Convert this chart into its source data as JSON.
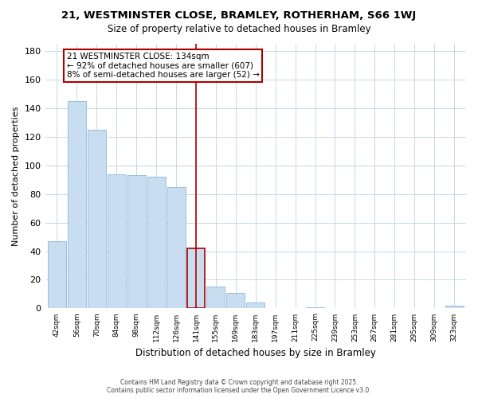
{
  "title": "21, WESTMINSTER CLOSE, BRAMLEY, ROTHERHAM, S66 1WJ",
  "subtitle": "Size of property relative to detached houses in Bramley",
  "xlabel": "Distribution of detached houses by size in Bramley",
  "ylabel": "Number of detached properties",
  "bar_labels": [
    "42sqm",
    "56sqm",
    "70sqm",
    "84sqm",
    "98sqm",
    "112sqm",
    "126sqm",
    "141sqm",
    "155sqm",
    "169sqm",
    "183sqm",
    "197sqm",
    "211sqm",
    "225sqm",
    "239sqm",
    "253sqm",
    "267sqm",
    "281sqm",
    "295sqm",
    "309sqm",
    "323sqm"
  ],
  "bar_values": [
    47,
    145,
    125,
    94,
    93,
    92,
    85,
    42,
    15,
    11,
    4,
    0,
    0,
    1,
    0,
    0,
    0,
    0,
    0,
    0,
    2
  ],
  "bar_color": "#c8ddf0",
  "bar_edge_color": "#7aafd4",
  "highlight_bar_index": 7,
  "highlight_bar_edge_color": "#aa0000",
  "vline_color": "#aa0000",
  "annotation_title": "21 WESTMINSTER CLOSE: 134sqm",
  "annotation_line1": "← 92% of detached houses are smaller (607)",
  "annotation_line2": "8% of semi-detached houses are larger (52) →",
  "ylim": [
    0,
    185
  ],
  "yticks": [
    0,
    20,
    40,
    60,
    80,
    100,
    120,
    140,
    160,
    180
  ],
  "footer_line1": "Contains HM Land Registry data © Crown copyright and database right 2025.",
  "footer_line2": "Contains public sector information licensed under the Open Government Licence v3.0.",
  "background_color": "#ffffff",
  "grid_color": "#c8d8e8"
}
